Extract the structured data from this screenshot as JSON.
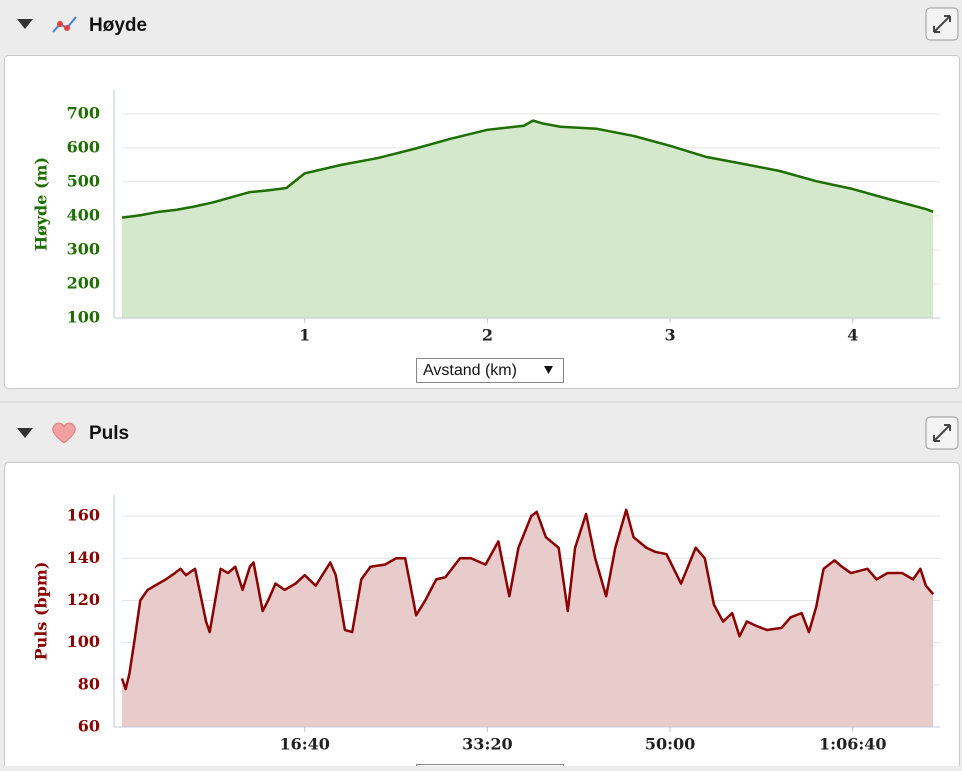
{
  "chart_data": [
    {
      "type": "line",
      "title": "Høyde",
      "y_label": "Høyde (m)",
      "x_label": "Avstand (km)",
      "color": "#1e6e00",
      "fill": "#d4e8cc",
      "grid": true,
      "x": [
        0,
        0.1,
        0.2,
        0.3,
        0.4,
        0.5,
        0.6,
        0.7,
        0.8,
        0.9,
        1.0,
        1.2,
        1.4,
        1.6,
        1.8,
        2.0,
        2.2,
        2.25,
        2.3,
        2.4,
        2.6,
        2.8,
        3.0,
        3.2,
        3.4,
        3.6,
        3.8,
        4.0,
        4.2,
        4.4,
        4.44
      ],
      "values": [
        395,
        402,
        412,
        418,
        428,
        440,
        455,
        470,
        475,
        482,
        525,
        550,
        570,
        597,
        627,
        653,
        665,
        680,
        672,
        662,
        656,
        635,
        606,
        573,
        553,
        532,
        502,
        479,
        449,
        420,
        412
      ],
      "xlim": [
        0,
        4.45
      ],
      "ylim": [
        100,
        770
      ],
      "xticks": [
        1,
        2,
        3,
        4
      ],
      "yticks": [
        100,
        200,
        300,
        400,
        500,
        600,
        700
      ]
    },
    {
      "type": "line",
      "title": "Puls",
      "y_label": "Puls (bpm)",
      "color": "#8b0000",
      "fill": "#e8cccc",
      "grid": true,
      "x": [
        0,
        20,
        40,
        70,
        100,
        140,
        180,
        240,
        290,
        320,
        350,
        400,
        460,
        480,
        540,
        580,
        620,
        660,
        700,
        720,
        770,
        800,
        840,
        890,
        950,
        1000,
        1060,
        1140,
        1170,
        1220,
        1260,
        1310,
        1360,
        1440,
        1500,
        1550,
        1610,
        1660,
        1720,
        1770,
        1850,
        1910,
        1990,
        2060,
        2120,
        2170,
        2240,
        2270,
        2320,
        2390,
        2440,
        2480,
        2540,
        2590,
        2650,
        2700,
        2760,
        2800,
        2870,
        2920,
        2980,
        3060,
        3140,
        3190,
        3240,
        3290,
        3340,
        3380,
        3420,
        3470,
        3530,
        3610,
        3660,
        3720,
        3760,
        3800,
        3840,
        3900,
        3940,
        3990,
        4080,
        4130,
        4190,
        4270,
        4330,
        4370,
        4400,
        4440
      ],
      "values": [
        83,
        78,
        85,
        102,
        120,
        125,
        127,
        130,
        133,
        135,
        132,
        135,
        110,
        105,
        135,
        133,
        136,
        125,
        136,
        138,
        115,
        120,
        128,
        125,
        128,
        132,
        127,
        138,
        132,
        106,
        105,
        130,
        136,
        137,
        140,
        140,
        113,
        120,
        130,
        131,
        140,
        140,
        137,
        148,
        122,
        145,
        160,
        162,
        150,
        145,
        115,
        145,
        161,
        140,
        122,
        145,
        163,
        150,
        145,
        143,
        142,
        128,
        145,
        140,
        118,
        110,
        114,
        103,
        110,
        108,
        106,
        107,
        112,
        114,
        105,
        117,
        135,
        139,
        136,
        133,
        135,
        130,
        133,
        133,
        130,
        135,
        127,
        123
      ],
      "xlim": [
        0,
        4450
      ],
      "ylim": [
        60,
        170
      ],
      "xticks": [
        {
          "value": 1000,
          "label": "16:40"
        },
        {
          "value": 2000,
          "label": "33:20"
        },
        {
          "value": 3000,
          "label": "50:00"
        },
        {
          "value": 4000,
          "label": "1:06:40"
        }
      ],
      "yticks": [
        60,
        80,
        100,
        120,
        140,
        160
      ]
    }
  ]
}
